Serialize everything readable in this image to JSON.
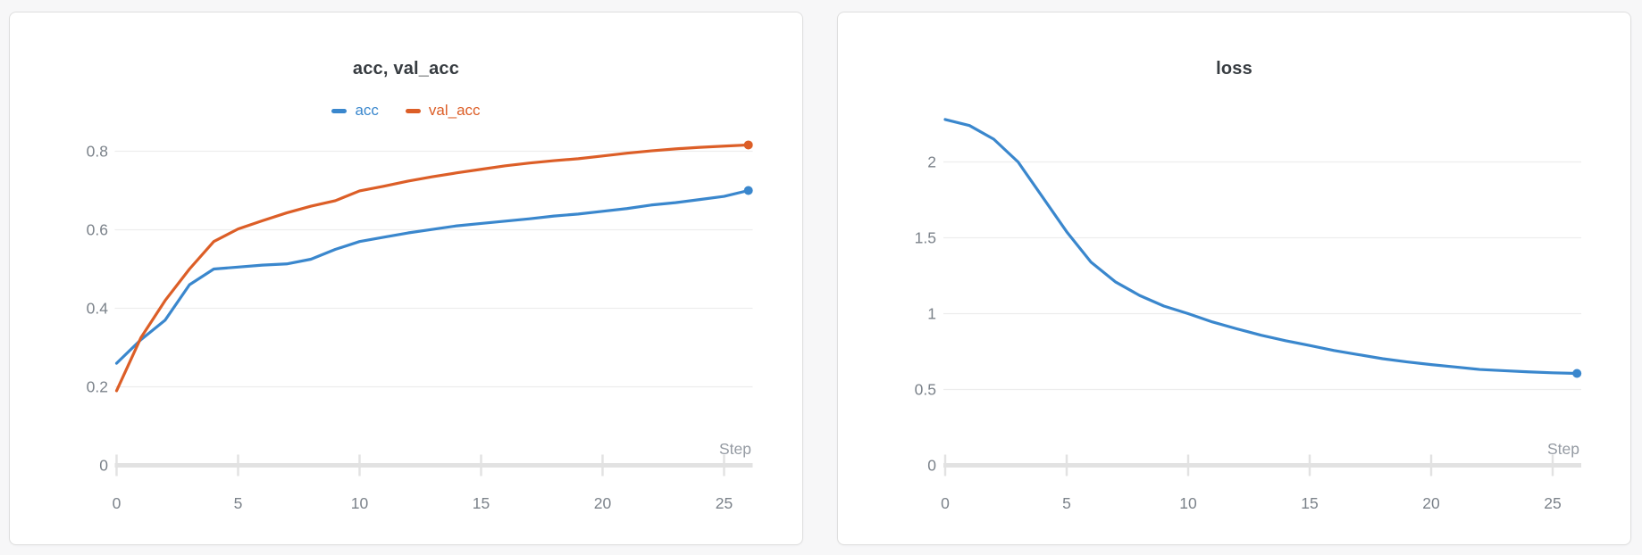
{
  "page": {
    "background": "#f7f7f8",
    "card_background": "#ffffff",
    "card_border": "#dedede"
  },
  "colors": {
    "series_blue": "#3a87cd",
    "series_orange": "#dc5e27",
    "gridline": "#ededed",
    "axis": "#e2e2e2",
    "tick_text": "#7b828a"
  },
  "chart_data": [
    {
      "type": "line",
      "title": "acc, val_acc",
      "xlabel": "Step",
      "ylabel": "",
      "legend_position": "top-center",
      "grid": "horizontal",
      "end_point_marker": true,
      "x": [
        0,
        1,
        2,
        3,
        4,
        5,
        6,
        7,
        8,
        9,
        10,
        11,
        12,
        13,
        14,
        15,
        16,
        17,
        18,
        19,
        20,
        21,
        22,
        23,
        24,
        25,
        26
      ],
      "x_ticks": [
        0,
        5,
        10,
        15,
        20,
        25
      ],
      "y_ticks": [
        0,
        0.2,
        0.4,
        0.6,
        0.8
      ],
      "y_tick_labels": [
        "0",
        "0.2",
        "0.4",
        "0.6",
        "0.8"
      ],
      "ylim": [
        0,
        0.88
      ],
      "series": [
        {
          "name": "acc",
          "color": "#3a87cd",
          "values": [
            0.26,
            0.32,
            0.37,
            0.46,
            0.5,
            0.505,
            0.51,
            0.513,
            0.525,
            0.55,
            0.57,
            0.581,
            0.592,
            0.601,
            0.61,
            0.616,
            0.622,
            0.628,
            0.635,
            0.64,
            0.647,
            0.654,
            0.663,
            0.669,
            0.677,
            0.685,
            0.7
          ]
        },
        {
          "name": "val_acc",
          "color": "#dc5e27",
          "values": [
            0.19,
            0.325,
            0.42,
            0.5,
            0.57,
            0.602,
            0.623,
            0.643,
            0.66,
            0.674,
            0.699,
            0.711,
            0.724,
            0.735,
            0.745,
            0.754,
            0.763,
            0.77,
            0.776,
            0.781,
            0.788,
            0.795,
            0.801,
            0.806,
            0.81,
            0.813,
            0.816
          ]
        }
      ]
    },
    {
      "type": "line",
      "title": "loss",
      "xlabel": "Step",
      "ylabel": "",
      "legend_position": "none",
      "grid": "horizontal",
      "end_point_marker": true,
      "x": [
        0,
        1,
        2,
        3,
        4,
        5,
        6,
        7,
        8,
        9,
        10,
        11,
        12,
        13,
        14,
        15,
        16,
        17,
        18,
        19,
        20,
        21,
        22,
        23,
        24,
        25,
        26
      ],
      "x_ticks": [
        0,
        5,
        10,
        15,
        20,
        25
      ],
      "y_ticks": [
        0,
        0.5,
        1,
        1.5,
        2
      ],
      "y_tick_labels": [
        "0",
        "0.5",
        "1",
        "1.5",
        "2"
      ],
      "ylim": [
        0,
        2.3
      ],
      "series": [
        {
          "name": "loss",
          "color": "#3a87cd",
          "values": [
            2.28,
            2.24,
            2.15,
            2.0,
            1.77,
            1.54,
            1.34,
            1.21,
            1.12,
            1.05,
            1.0,
            0.945,
            0.9,
            0.858,
            0.822,
            0.79,
            0.757,
            0.73,
            0.703,
            0.682,
            0.664,
            0.648,
            0.632,
            0.624,
            0.616,
            0.61,
            0.606
          ]
        }
      ]
    }
  ]
}
